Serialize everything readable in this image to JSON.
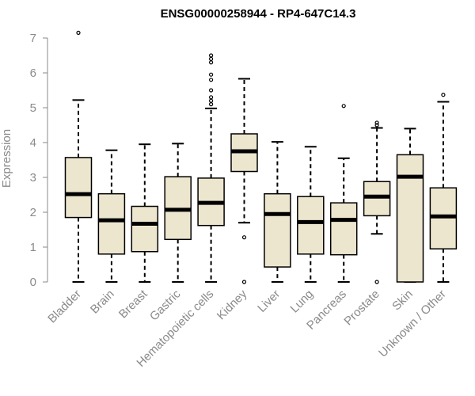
{
  "chart_data": {
    "type": "boxplot",
    "title": "ENSG00000258944 - RP4-647C14.3",
    "xlabel": "",
    "ylabel": "Expression",
    "ylim": [
      0,
      7.2
    ],
    "yticks": [
      0,
      1,
      2,
      3,
      4,
      5,
      6,
      7
    ],
    "colors": {
      "box_fill": "#ede6cf",
      "box_stroke": "#000000",
      "axis": "#8a8a8a"
    },
    "categories": [
      "Bladder",
      "Brain",
      "Breast",
      "Gastric",
      "Hematopoietic cells",
      "Kidney",
      "Liver",
      "Lung",
      "Pancreas",
      "Prostate",
      "Skin",
      "Unknown / Other"
    ],
    "boxes": [
      {
        "name": "Bladder",
        "whisker_low": 0,
        "q1": 1.85,
        "median": 2.52,
        "q3": 3.57,
        "whisker_high": 5.22,
        "outliers": [
          7.15
        ]
      },
      {
        "name": "Brain",
        "whisker_low": 0,
        "q1": 0.8,
        "median": 1.77,
        "q3": 2.53,
        "whisker_high": 3.78,
        "outliers": []
      },
      {
        "name": "Breast",
        "whisker_low": 0,
        "q1": 0.87,
        "median": 1.67,
        "q3": 2.17,
        "whisker_high": 3.95,
        "outliers": []
      },
      {
        "name": "Gastric",
        "whisker_low": 0,
        "q1": 1.22,
        "median": 2.07,
        "q3": 3.02,
        "whisker_high": 3.97,
        "outliers": []
      },
      {
        "name": "Hematopoietic cells",
        "whisker_low": 0,
        "q1": 1.62,
        "median": 2.27,
        "q3": 2.98,
        "whisker_high": 4.98,
        "outliers": [
          5.1,
          5.2,
          5.3,
          5.5,
          5.8,
          5.95,
          6.3,
          6.4,
          6.5
        ]
      },
      {
        "name": "Kidney",
        "whisker_low": 1.7,
        "q1": 3.17,
        "median": 3.75,
        "q3": 4.25,
        "whisker_high": 5.83,
        "outliers": [
          1.28,
          0
        ]
      },
      {
        "name": "Liver",
        "whisker_low": 0,
        "q1": 0.43,
        "median": 1.95,
        "q3": 2.53,
        "whisker_high": 4.02,
        "outliers": []
      },
      {
        "name": "Lung",
        "whisker_low": 0,
        "q1": 0.8,
        "median": 1.72,
        "q3": 2.45,
        "whisker_high": 3.88,
        "outliers": []
      },
      {
        "name": "Pancreas",
        "whisker_low": 0,
        "q1": 0.78,
        "median": 1.78,
        "q3": 2.27,
        "whisker_high": 3.55,
        "outliers": [
          5.05
        ]
      },
      {
        "name": "Prostate",
        "whisker_low": 1.38,
        "q1": 1.9,
        "median": 2.45,
        "q3": 2.88,
        "whisker_high": 4.42,
        "outliers": [
          4.5,
          4.57,
          0
        ]
      },
      {
        "name": "Skin",
        "whisker_low": 0,
        "q1": 0,
        "median": 3.02,
        "q3": 3.65,
        "whisker_high": 4.4,
        "outliers": []
      },
      {
        "name": "Unknown / Other",
        "whisker_low": 0,
        "q1": 0.95,
        "median": 1.88,
        "q3": 2.7,
        "whisker_high": 5.17,
        "outliers": [
          5.37
        ]
      }
    ]
  }
}
